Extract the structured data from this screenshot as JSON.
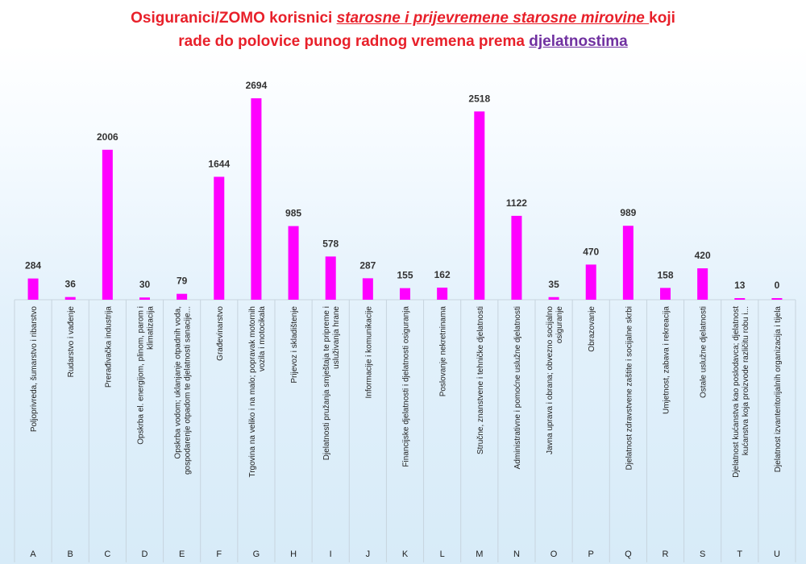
{
  "title": {
    "line1_a": "Osiguranici/ZOMO korisnici ",
    "line1_b": "starosne i prijevremene starosne mirovine ",
    "line1_c": "koji",
    "line2_a": "rade do polovice punog radnog vremena prema ",
    "line2_b": "djelatnostima"
  },
  "colors": {
    "bar": "#ff00ff",
    "title": "#e8202a",
    "title_link": "#7030a0"
  },
  "chart_data": {
    "type": "bar",
    "codes": [
      "A",
      "B",
      "C",
      "D",
      "E",
      "F",
      "G",
      "H",
      "I",
      "J",
      "K",
      "L",
      "M",
      "N",
      "O",
      "P",
      "Q",
      "R",
      "S",
      "T",
      "U"
    ],
    "categories": [
      [
        "Poljoprivreda, šumarstvo i ribarstvo"
      ],
      [
        "Rudarstvo i vađenje"
      ],
      [
        "Prerađivačka industrija"
      ],
      [
        "Opskrba el. energijom, plinom, parom i",
        "klimatizacija"
      ],
      [
        "Opskrba vodom; uklanjanje otpadnih voda,",
        "gospodarenje otpadom te djelatnosti sanacije..."
      ],
      [
        "Građevinarstvo"
      ],
      [
        "Trgovina na veliko i na malo; popravak motornih",
        "vozila i motocikala"
      ],
      [
        "Prijevoz i skladištenje"
      ],
      [
        "Djelatnosti pružanja smještaja te pripreme i",
        "usluživanja hrane"
      ],
      [
        "Informacije i komunikacije"
      ],
      [
        "Financijske djelatnosti i djelatnosti osiguranja"
      ],
      [
        "Poslovanje nekretninama"
      ],
      [
        "Stručne, znanstvene i tehničke djelatnosti"
      ],
      [
        "Administrativne i pomoćne uslužne djelatnosti"
      ],
      [
        "Javna uprava i obrana; obvezno socijalno",
        "osiguranje"
      ],
      [
        "Obrazovanje"
      ],
      [
        "Djelatnost zdravstvene zaštite i socijalne skrbi"
      ],
      [
        "Umjetnost, zabava i rekreacija"
      ],
      [
        "Ostale uslužne djelatnosti"
      ],
      [
        "Djelatnost kućanstva kao poslodavca; djelatnost",
        "kućanstva koja proizvode različitu robu i..."
      ],
      [
        "Djelatnost izvanteritorijalnih organizacija i tijela"
      ]
    ],
    "values": [
      284,
      36,
      2006,
      30,
      79,
      1644,
      2694,
      985,
      578,
      287,
      155,
      162,
      2518,
      1122,
      35,
      470,
      989,
      158,
      420,
      13,
      0
    ],
    "ylim": [
      0,
      2694
    ],
    "grid": false,
    "legend": "none"
  }
}
